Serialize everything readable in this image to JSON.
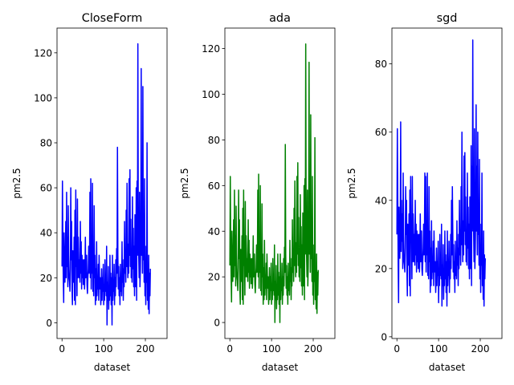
{
  "chart_data": [
    {
      "type": "line",
      "title": "CloseForm",
      "xlabel": "dataset",
      "ylabel": "pm2.5",
      "color": "#0000ff",
      "xlim": [
        -12,
        252
      ],
      "ylim": [
        -7,
        131
      ],
      "xticks": [
        0,
        100,
        200
      ],
      "yticks": [
        0,
        20,
        40,
        60,
        80,
        100,
        120
      ],
      "series": [
        {
          "values": [
            25,
            63,
            35,
            20,
            9,
            40,
            22,
            18,
            30,
            45,
            20,
            58,
            25,
            38,
            16,
            52,
            30,
            20,
            18,
            14,
            24,
            60,
            28,
            45,
            15,
            8,
            32,
            20,
            18,
            38,
            10,
            50,
            8,
            59,
            25,
            35,
            12,
            55,
            20,
            38,
            30,
            20,
            28,
            18,
            45,
            22,
            36,
            15,
            30,
            20,
            28,
            17,
            26,
            28,
            15,
            22,
            38,
            20,
            24,
            30,
            17,
            13,
            20,
            24,
            34,
            22,
            28,
            58,
            20,
            64,
            15,
            35,
            22,
            62,
            14,
            30,
            12,
            52,
            20,
            30,
            8,
            24,
            10,
            36,
            12,
            20,
            15,
            26,
            10,
            30,
            20,
            15,
            20,
            8,
            12,
            24,
            10,
            20,
            14,
            26,
            8,
            16,
            10,
            28,
            14,
            20,
            12,
            34,
            -1,
            18,
            10,
            25,
            6,
            15,
            10,
            30,
            12,
            22,
            8,
            20,
            -1,
            30,
            10,
            18,
            14,
            26,
            8,
            20,
            12,
            28,
            16,
            33,
            22,
            78,
            30,
            15,
            25,
            12,
            20,
            8,
            26,
            14,
            20,
            12,
            36,
            18,
            24,
            10,
            28,
            16,
            45,
            22,
            30,
            18,
            50,
            25,
            62,
            30,
            20,
            35,
            22,
            64,
            30,
            68,
            25,
            46,
            20,
            30,
            18,
            56,
            24,
            42,
            16,
            34,
            12,
            48,
            20,
            16,
            60,
            10,
            63,
            30,
            124,
            45,
            30,
            20,
            58,
            16,
            24,
            40,
            113,
            30,
            60,
            22,
            105,
            28,
            40,
            18,
            64,
            12,
            34,
            8,
            24,
            18,
            80,
            10,
            20,
            6,
            30,
            4,
            22,
            12,
            24
          ]
        }
      ]
    },
    {
      "type": "line",
      "title": "ada",
      "xlabel": "dataset",
      "ylabel": "pm2.5",
      "color": "#008000",
      "xlim": [
        -12,
        252
      ],
      "ylim": [
        -7,
        129
      ],
      "xticks": [
        0,
        100,
        200
      ],
      "yticks": [
        0,
        20,
        40,
        60,
        80,
        100,
        120
      ],
      "series": [
        {
          "values": [
            25,
            64,
            35,
            20,
            9,
            40,
            22,
            18,
            30,
            45,
            20,
            58,
            25,
            38,
            16,
            51,
            30,
            20,
            18,
            14,
            24,
            58,
            28,
            45,
            15,
            8,
            32,
            20,
            18,
            38,
            10,
            50,
            8,
            58,
            25,
            35,
            12,
            53,
            20,
            38,
            30,
            20,
            28,
            18,
            45,
            22,
            36,
            15,
            30,
            20,
            28,
            17,
            26,
            28,
            15,
            22,
            38,
            20,
            24,
            30,
            17,
            13,
            20,
            24,
            34,
            22,
            28,
            58,
            20,
            65,
            15,
            35,
            22,
            60,
            14,
            30,
            12,
            52,
            20,
            30,
            8,
            24,
            10,
            36,
            12,
            20,
            15,
            26,
            10,
            30,
            20,
            15,
            20,
            8,
            12,
            24,
            10,
            20,
            14,
            26,
            8,
            16,
            10,
            28,
            14,
            20,
            12,
            34,
            0,
            18,
            10,
            25,
            6,
            15,
            10,
            30,
            12,
            22,
            8,
            20,
            0,
            30,
            10,
            18,
            14,
            26,
            8,
            20,
            12,
            28,
            16,
            33,
            22,
            78,
            30,
            15,
            25,
            12,
            20,
            8,
            26,
            14,
            20,
            12,
            36,
            18,
            24,
            10,
            28,
            16,
            45,
            22,
            30,
            18,
            50,
            25,
            62,
            30,
            20,
            35,
            22,
            64,
            30,
            70,
            25,
            46,
            20,
            30,
            18,
            56,
            24,
            42,
            16,
            34,
            12,
            48,
            20,
            16,
            60,
            10,
            63,
            30,
            122,
            45,
            30,
            20,
            58,
            16,
            24,
            40,
            114,
            30,
            60,
            22,
            91,
            28,
            40,
            18,
            64,
            12,
            34,
            8,
            24,
            18,
            81,
            10,
            20,
            6,
            30,
            4,
            22,
            12,
            23
          ]
        }
      ]
    },
    {
      "type": "line",
      "title": "sgd",
      "xlabel": "dataset",
      "ylabel": "pm2.5",
      "color": "#0000ff",
      "xlim": [
        -12,
        252
      ],
      "ylim": [
        -0.5,
        90.5
      ],
      "xticks": [
        0,
        100,
        200
      ],
      "yticks": [
        0,
        20,
        40,
        60,
        80
      ],
      "series": [
        {
          "values": [
            30,
            61,
            40,
            21,
            10,
            38,
            26,
            23,
            33,
            63,
            25,
            40,
            28,
            36,
            20,
            48,
            30,
            22,
            21,
            19,
            26,
            44,
            30,
            40,
            20,
            12,
            33,
            22,
            21,
            36,
            15,
            43,
            12,
            47,
            28,
            33,
            17,
            47,
            22,
            36,
            30,
            22,
            30,
            21,
            40,
            24,
            33,
            19,
            31,
            22,
            30,
            20,
            28,
            30,
            19,
            24,
            36,
            22,
            26,
            31,
            20,
            18,
            22,
            26,
            33,
            24,
            30,
            48,
            22,
            47,
            19,
            34,
            24,
            48,
            18,
            31,
            17,
            44,
            22,
            31,
            13,
            26,
            15,
            34,
            17,
            22,
            19,
            28,
            15,
            31,
            22,
            19,
            22,
            13,
            17,
            26,
            15,
            22,
            18,
            28,
            10,
            20,
            15,
            30,
            18,
            22,
            17,
            33,
            9,
            21,
            15,
            27,
            11,
            19,
            15,
            31,
            17,
            24,
            13,
            22,
            9,
            31,
            15,
            21,
            18,
            28,
            13,
            22,
            17,
            30,
            20,
            40,
            24,
            44,
            31,
            19,
            27,
            17,
            22,
            13,
            28,
            18,
            22,
            17,
            34,
            21,
            26,
            15,
            30,
            20,
            40,
            24,
            31,
            21,
            44,
            27,
            60,
            31,
            22,
            34,
            24,
            53,
            31,
            54,
            27,
            41,
            22,
            31,
            21,
            48,
            26,
            38,
            20,
            33,
            17,
            41,
            22,
            20,
            56,
            15,
            50,
            31,
            87,
            40,
            31,
            22,
            61,
            20,
            26,
            36,
            68,
            31,
            50,
            24,
            60,
            30,
            38,
            21,
            52,
            17,
            33,
            13,
            26,
            21,
            48,
            15,
            22,
            11,
            31,
            9,
            24,
            17,
            23
          ]
        }
      ]
    }
  ]
}
